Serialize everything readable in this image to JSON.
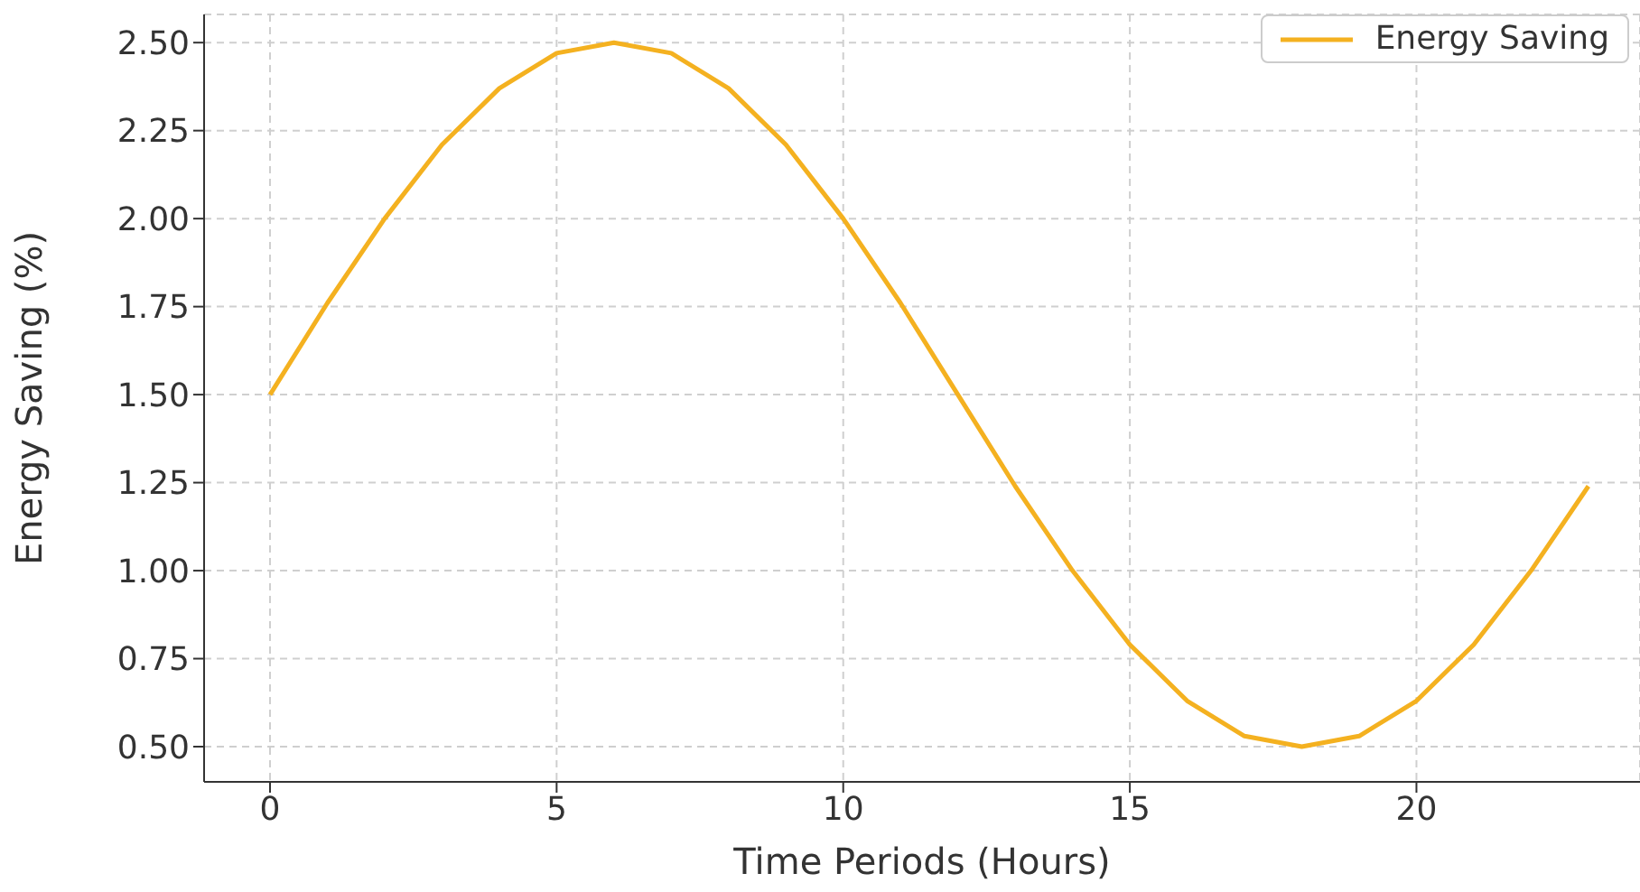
{
  "chart_data": {
    "type": "line",
    "xlabel": "Time Periods (Hours)",
    "ylabel": "Energy Saving (%)",
    "x": [
      0,
      1,
      2,
      3,
      4,
      5,
      6,
      7,
      8,
      9,
      10,
      11,
      12,
      13,
      14,
      15,
      16,
      17,
      18,
      19,
      20,
      21,
      22,
      23
    ],
    "series": [
      {
        "name": "Energy Saving",
        "color": "#f4b120",
        "values": [
          1.5,
          1.76,
          2.0,
          2.21,
          2.37,
          2.47,
          2.5,
          2.47,
          2.37,
          2.21,
          2.0,
          1.76,
          1.5,
          1.24,
          1.0,
          0.79,
          0.63,
          0.53,
          0.5,
          0.53,
          0.63,
          0.79,
          1.0,
          1.24
        ]
      }
    ],
    "xlim": [
      -1.15,
      23.9
    ],
    "xticks": [
      0,
      5,
      10,
      15,
      20
    ],
    "ylim": [
      0.4,
      2.58
    ],
    "yticks": [
      {
        "value": 0.5,
        "label": "0.50"
      },
      0.75,
      {
        "value": 1,
        "label": "1.00"
      },
      1.25,
      {
        "value": 1.5,
        "label": "1.50"
      },
      1.75,
      {
        "value": 2,
        "label": "2.00"
      },
      2.25,
      {
        "value": 2.5,
        "label": "2.50"
      }
    ],
    "grid": true,
    "legend": "top right",
    "line_style": "solid",
    "marker": "none"
  }
}
